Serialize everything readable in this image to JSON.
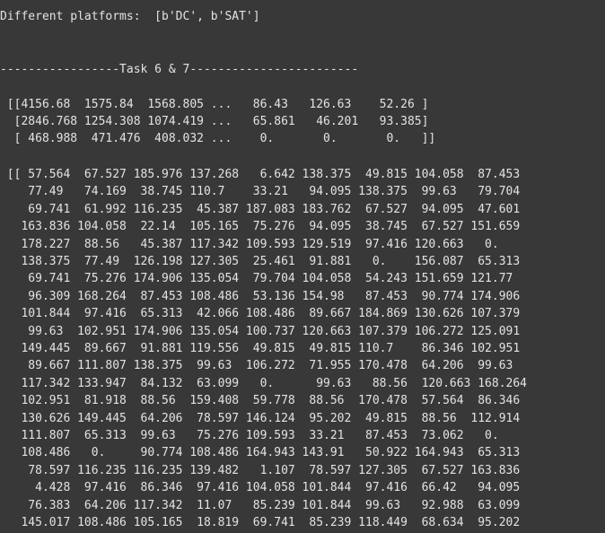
{
  "platforms_line": "Different platforms:  [b'DC', b'SAT']",
  "task_header": "-----------------Task 6 & 7------------------------",
  "matrix_summary": [
    " [[4156.68  1575.84  1568.805 ...   86.43   126.63    52.26 ]",
    "  [2846.768 1254.308 1074.419 ...   65.861   46.201   93.385]",
    "  [ 468.988  471.476  408.032 ...    0.       0.       0.   ]]"
  ],
  "array_rows": [
    " [[ 57.564  67.527 185.976 137.268   6.642 138.375  49.815 104.058  87.453",
    "    77.49   74.169  38.745 110.7    33.21   94.095 138.375  99.63   79.704",
    "    69.741  61.992 116.235  45.387 187.083 183.762  67.527  94.095  47.601",
    "   163.836 104.058  22.14  105.165  75.276  94.095  38.745  67.527 151.659",
    "   178.227  88.56   45.387 117.342 109.593 129.519  97.416 120.663   0.",
    "   138.375  77.49  126.198 127.305  25.461  91.881   0.    156.087  65.313",
    "    69.741  75.276 174.906 135.054  79.704 104.058  54.243 151.659 121.77",
    "    96.309 168.264  87.453 108.486  53.136 154.98   87.453  90.774 174.906",
    "   101.844  97.416  65.313  42.066 108.486  89.667 184.869 130.626 107.379",
    "    99.63  102.951 174.906 135.054 100.737 120.663 107.379 106.272 125.091",
    "   149.445  89.667  91.881 119.556  49.815  49.815 110.7    86.346 102.951",
    "    89.667 111.807 138.375  99.63  106.272  71.955 170.478  64.206  99.63",
    "   117.342 133.947  84.132  63.099   0.      99.63   88.56  120.663 168.264",
    "   102.951  81.918  88.56  159.408  59.778  88.56  170.478  57.564  86.346",
    "   130.626 149.445  64.206  78.597 146.124  95.202  49.815  88.56  112.914",
    "   111.807  65.313  99.63   75.276 109.593  33.21   87.453  73.062   0.",
    "   108.486   0.     90.774 108.486 164.943 143.91   50.922 164.943  65.313",
    "    78.597 116.235 116.235 139.482   1.107  78.597 127.305  67.527 163.836",
    "     4.428  97.416  86.346  97.416 104.058 101.844  97.416  66.42   94.095",
    "    76.383  64.206 117.342  11.07   85.239 101.844  99.63   92.988  63.099",
    "   145.017 108.486 105.165  18.819  69.741  85.239 118.449  68.634  95.202"
  ]
}
